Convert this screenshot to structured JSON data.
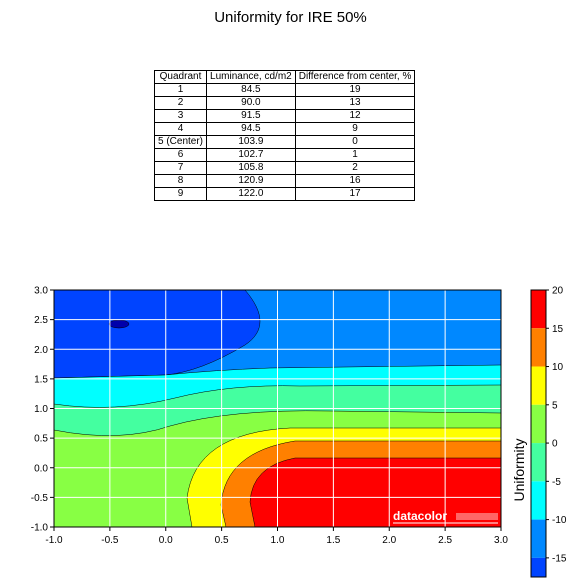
{
  "title": "Uniformity for IRE 50%",
  "table": {
    "headers": [
      "Quadrant",
      "Luminance, cd/m2",
      "Difference from center, %"
    ],
    "rows": [
      [
        "1",
        "84.5",
        "19"
      ],
      [
        "2",
        "90.0",
        "13"
      ],
      [
        "3",
        "91.5",
        "12"
      ],
      [
        "4",
        "94.5",
        "9"
      ],
      [
        "5 (Center)",
        "103.9",
        "0"
      ],
      [
        "6",
        "102.7",
        "1"
      ],
      [
        "7",
        "105.8",
        "2"
      ],
      [
        "8",
        "120.9",
        "16"
      ],
      [
        "9",
        "122.0",
        "17"
      ]
    ]
  },
  "chart_data": {
    "type": "heatmap",
    "subtype": "filled-contour",
    "x_ticks": [
      "-1.0",
      "-0.5",
      "0.0",
      "0.5",
      "1.0",
      "1.5",
      "2.0",
      "2.5",
      "3.0"
    ],
    "y_ticks": [
      "3.0",
      "2.5",
      "2.0",
      "1.5",
      "1.0",
      "0.5",
      "0.0",
      "-0.5",
      "-1.0"
    ],
    "xlim": [
      -1.0,
      3.0
    ],
    "ylim": [
      -1.0,
      3.0
    ],
    "grid": true,
    "colorbar": {
      "label": "Uniformity",
      "ticks": [
        "20",
        "15",
        "10",
        "5",
        "0",
        "-5",
        "-10",
        "-15"
      ],
      "range": [
        -17.5,
        20
      ],
      "levels": [
        {
          "from": 15,
          "to": 20,
          "color": "#ff0000"
        },
        {
          "from": 10,
          "to": 15,
          "color": "#ff8000"
        },
        {
          "from": 5,
          "to": 10,
          "color": "#ffff00"
        },
        {
          "from": 0,
          "to": 5,
          "color": "#88ff44"
        },
        {
          "from": -5,
          "to": 0,
          "color": "#44ffa0"
        },
        {
          "from": -10,
          "to": -5,
          "color": "#00ffff"
        },
        {
          "from": -15,
          "to": -10,
          "color": "#0088ff"
        },
        {
          "from": -17.5,
          "to": -15,
          "color": "#0044ff"
        }
      ]
    },
    "watermark": "datacolor"
  }
}
